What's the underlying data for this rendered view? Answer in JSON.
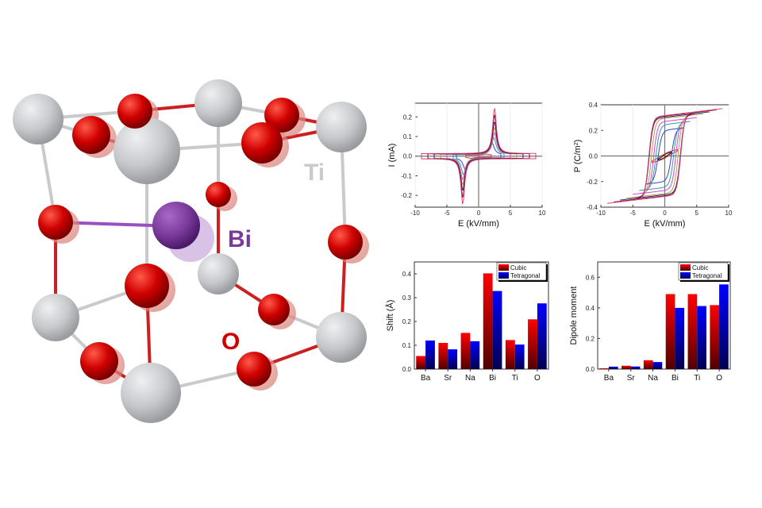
{
  "structure": {
    "labels": {
      "ti": "Ti",
      "bi": "Bi",
      "o": "O"
    },
    "colors": {
      "ti": "#c8cacc",
      "bi": "#7a3a9a",
      "o": "#cc0000"
    }
  },
  "chart_data": [
    {
      "type": "line",
      "id": "ie",
      "xlabel": "E (kV/mm)",
      "ylabel": "I (mA)",
      "xlim": [
        -10,
        10
      ],
      "ylim": [
        -0.26,
        0.27
      ],
      "xticks": [
        "-10",
        "-5",
        "0",
        "5",
        "10"
      ],
      "xtick_values": [
        -10,
        -5,
        0,
        5,
        10
      ],
      "yticks": [
        "-0.2",
        "-0.1",
        "0.0",
        "0.1",
        "0.2"
      ],
      "ytick_values": [
        -0.2,
        -0.1,
        0,
        0.1,
        0.2
      ],
      "series": [
        {
          "Emax": 2,
          "peak": 0.005,
          "color": "#e03a2a"
        },
        {
          "Emax": 3.5,
          "peak": 0.06,
          "color": "#3344cc"
        },
        {
          "Emax": 4,
          "peak": 0.085,
          "color": "#2aa0a0"
        },
        {
          "Emax": 5,
          "peak": 0.11,
          "color": "#e040e0"
        },
        {
          "Emax": 6,
          "peak": 0.135,
          "color": "#b0a040"
        },
        {
          "Emax": 7,
          "peak": 0.165,
          "color": "#222266"
        },
        {
          "Emax": 8,
          "peak": 0.2,
          "color": "#7a0022"
        },
        {
          "Emax": 9,
          "peak": 0.235,
          "color": "#e0407a"
        }
      ]
    },
    {
      "type": "line",
      "id": "pe",
      "xlabel": "E (kV/mm)",
      "ylabel": "P (C/m",
      "ylabel_sup": "2",
      "ylabel_end": ")",
      "xlim": [
        -10,
        10
      ],
      "ylim": [
        -0.4,
        0.4
      ],
      "xticks": [
        "-10",
        "-5",
        "0",
        "5",
        "10"
      ],
      "xtick_values": [
        -10,
        -5,
        0,
        5,
        10
      ],
      "yticks": [
        "-0.4",
        "-0.2",
        "0.0",
        "0.2",
        "0.4"
      ],
      "ytick_values": [
        -0.4,
        -0.2,
        0,
        0.2,
        0.4
      ],
      "series": [
        {
          "Emax": 1,
          "Pmax": 0.03,
          "color": "#111111"
        },
        {
          "Emax": 2,
          "Pmax": 0.05,
          "color": "#e03a2a"
        },
        {
          "Emax": 3,
          "Pmax": 0.22,
          "color": "#3344cc"
        },
        {
          "Emax": 4,
          "Pmax": 0.27,
          "color": "#2aa0a0"
        },
        {
          "Emax": 5,
          "Pmax": 0.3,
          "color": "#e040e0"
        },
        {
          "Emax": 6,
          "Pmax": 0.33,
          "color": "#b0a040"
        },
        {
          "Emax": 7,
          "Pmax": 0.345,
          "color": "#222266"
        },
        {
          "Emax": 8,
          "Pmax": 0.36,
          "color": "#7a0022"
        },
        {
          "Emax": 9,
          "Pmax": 0.37,
          "color": "#e0407a"
        }
      ]
    },
    {
      "type": "bar",
      "id": "shift",
      "ylabel": "Shift (Å)",
      "categories": [
        "Ba",
        "Sr",
        "Na",
        "Bi",
        "Ti",
        "O"
      ],
      "ylim": [
        0,
        0.45
      ],
      "yticks": [
        "0.0",
        "0.1",
        "0.2",
        "0.3",
        "0.4"
      ],
      "ytick_values": [
        0,
        0.1,
        0.2,
        0.3,
        0.4
      ],
      "legend": "top-right",
      "series": [
        {
          "name": "Cubic",
          "values": [
            0.055,
            0.11,
            0.152,
            0.402,
            0.122,
            0.209
          ],
          "color": "#ff0000"
        },
        {
          "name": "Tetragonal",
          "values": [
            0.12,
            0.083,
            0.117,
            0.328,
            0.103,
            0.276
          ],
          "color": "#0000ff"
        }
      ]
    },
    {
      "type": "bar",
      "id": "dipole",
      "ylabel": "Dipole moment",
      "categories": [
        "Ba",
        "Sr",
        "Na",
        "Bi",
        "Ti",
        "O"
      ],
      "ylim": [
        0,
        0.7
      ],
      "yticks": [
        "0.0",
        "0.2",
        "0.4",
        "0.6"
      ],
      "ytick_values": [
        0,
        0.2,
        0.4,
        0.6
      ],
      "legend": "top-right",
      "series": [
        {
          "name": "Cubic",
          "values": [
            0.005,
            0.022,
            0.058,
            0.49,
            0.49,
            0.418
          ],
          "color": "#ff0000"
        },
        {
          "name": "Tetragonal",
          "values": [
            0.016,
            0.017,
            0.046,
            0.4,
            0.412,
            0.553
          ],
          "color": "#0000ff"
        }
      ]
    }
  ]
}
